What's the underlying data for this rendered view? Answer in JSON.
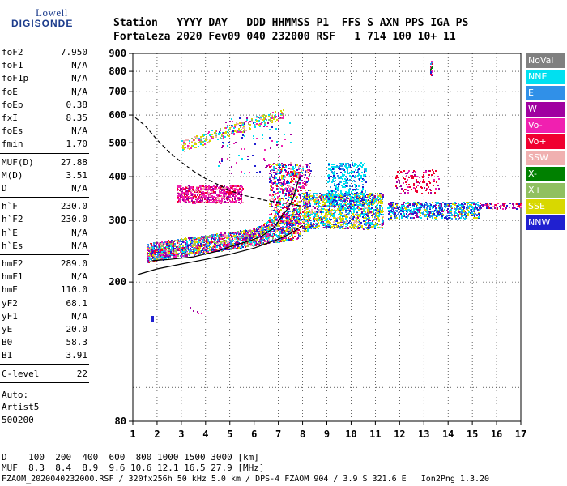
{
  "logo": {
    "top": "Lowell",
    "main": "DIGISONDE"
  },
  "header": {
    "line1": "Station   YYYY DAY   DDD HHMMSS P1  FFS S AXN PPS IGA PS",
    "line2": "Fortaleza 2020 Fev09 040 232000 RSF   1 714 100 10+ 11"
  },
  "parameters": {
    "group1": [
      {
        "name": "foF2",
        "value": "7.950"
      },
      {
        "name": "foF1",
        "value": "N/A"
      },
      {
        "name": "foF1p",
        "value": "N/A"
      },
      {
        "name": "foE",
        "value": "N/A"
      },
      {
        "name": "foEp",
        "value": "0.38"
      },
      {
        "name": "fxI",
        "value": "8.35"
      },
      {
        "name": "foEs",
        "value": "N/A"
      },
      {
        "name": "fmin",
        "value": "1.70"
      }
    ],
    "group2": [
      {
        "name": "MUF(D)",
        "value": "27.88"
      },
      {
        "name": "M(D)",
        "value": "3.51"
      },
      {
        "name": "D",
        "value": "N/A"
      }
    ],
    "group3": [
      {
        "name": "h`F",
        "value": "230.0"
      },
      {
        "name": "h`F2",
        "value": "230.0"
      },
      {
        "name": "h`E",
        "value": "N/A"
      },
      {
        "name": "h`Es",
        "value": "N/A"
      }
    ],
    "group4": [
      {
        "name": "hmF2",
        "value": "289.0"
      },
      {
        "name": "hmF1",
        "value": "N/A"
      },
      {
        "name": "hmE",
        "value": "110.0"
      },
      {
        "name": "yF2",
        "value": "68.1"
      },
      {
        "name": "yF1",
        "value": "N/A"
      },
      {
        "name": "yE",
        "value": "20.0"
      },
      {
        "name": "B0",
        "value": "58.3"
      },
      {
        "name": "B1",
        "value": "3.91"
      }
    ],
    "group5": [
      {
        "name": "C-level",
        "value": "22"
      }
    ],
    "auto_label": "Auto:",
    "artist": "Artist5",
    "artist_version": "500200"
  },
  "legend": [
    {
      "label": "NoVal",
      "color": "#808080"
    },
    {
      "label": "NNE",
      "color": "#00e0f0"
    },
    {
      "label": "E",
      "color": "#3090e8"
    },
    {
      "label": "W",
      "color": "#a000a0"
    },
    {
      "label": "Vo-",
      "color": "#f020b0"
    },
    {
      "label": "Vo+",
      "color": "#f00030"
    },
    {
      "label": "SSW",
      "color": "#f0b0b0"
    },
    {
      "label": "X-",
      "color": "#008000"
    },
    {
      "label": "X+",
      "color": "#90c060"
    },
    {
      "label": "SSE",
      "color": "#d8d800"
    },
    {
      "label": "NNW",
      "color": "#2020d0"
    }
  ],
  "bottom": {
    "d_row": "D    100  200  400  600  800 1000 1500 3000 [km]",
    "muf_row": "MUF  8.3  8.4  8.9  9.6 10.6 12.1 16.5 27.9 [MHz]",
    "footer": "FZAOM_2020040232000.RSF / 320fx256h 50 kHz 5.0 km / DPS-4 FZAOM 904 / 3.9 S 321.6 E   Ion2Png 1.3.20"
  },
  "chart_data": {
    "type": "scatter",
    "title": "",
    "xlabel": "",
    "ylabel": "",
    "xlim": [
      1,
      17
    ],
    "ylim": [
      80,
      900
    ],
    "y_scale": "log",
    "x_ticks": [
      "1",
      "2",
      "3",
      "4",
      "5",
      "6",
      "7",
      "8",
      "9",
      "10",
      "11",
      "12",
      "13",
      "14",
      "15",
      "16",
      "17"
    ],
    "y_ticks": [
      "80",
      "200",
      "300",
      "400",
      "500",
      "600",
      "700",
      "800",
      "900"
    ],
    "y_tick_values": [
      80,
      200,
      300,
      400,
      500,
      600,
      700,
      800,
      900
    ],
    "grid": true,
    "traces": [
      {
        "name": "profile_solid_lower",
        "style": "solid",
        "x": [
          1.2,
          2,
          3,
          4,
          5,
          6,
          7,
          7.5,
          8
        ],
        "y": [
          210,
          218,
          225,
          232,
          240,
          250,
          265,
          275,
          290
        ]
      },
      {
        "name": "profile_solid_upper",
        "style": "solid",
        "x": [
          1.8,
          2.5,
          3.5,
          4.5,
          5.2,
          5.8,
          6.3,
          6.8,
          7.1,
          7.4,
          7.6,
          7.7,
          7.8,
          7.9
        ],
        "y": [
          230,
          232,
          236,
          245,
          255,
          262,
          270,
          285,
          305,
          325,
          345,
          365,
          385,
          400
        ]
      },
      {
        "name": "profile_dashed",
        "style": "dashed",
        "x": [
          1.1,
          1.5,
          2,
          2.5,
          3,
          3.5,
          4,
          4.5,
          5,
          5.5,
          6,
          6.5,
          7,
          7.5,
          7.9
        ],
        "y": [
          590,
          560,
          510,
          470,
          440,
          415,
          395,
          380,
          365,
          355,
          348,
          342,
          338,
          334,
          330
        ]
      }
    ],
    "clusters": [
      {
        "name": "F trace",
        "x": [
          1.5,
          7.9
        ],
        "y": [
          225,
          300
        ]
      },
      {
        "name": "F2 upper",
        "x": [
          5.5,
          8.3
        ],
        "y": [
          280,
          420
        ]
      },
      {
        "name": "F upper band",
        "x": [
          2.8,
          5.5
        ],
        "y": [
          340,
          380
        ]
      },
      {
        "name": "oblique 500",
        "x": [
          3,
          7.2
        ],
        "y": [
          470,
          610
        ]
      },
      {
        "name": "oblique east",
        "x": [
          7.5,
          11.5
        ],
        "y": [
          290,
          440
        ]
      },
      {
        "name": "oblique far",
        "x": [
          10,
          17
        ],
        "y": [
          300,
          340
        ]
      },
      {
        "name": "spike 13.3",
        "x": [
          13.25,
          13.35
        ],
        "y": [
          780,
          860
        ]
      },
      {
        "name": "isolated low",
        "x": [
          3,
          3.8
        ],
        "y": [
          160,
          172
        ]
      }
    ]
  }
}
